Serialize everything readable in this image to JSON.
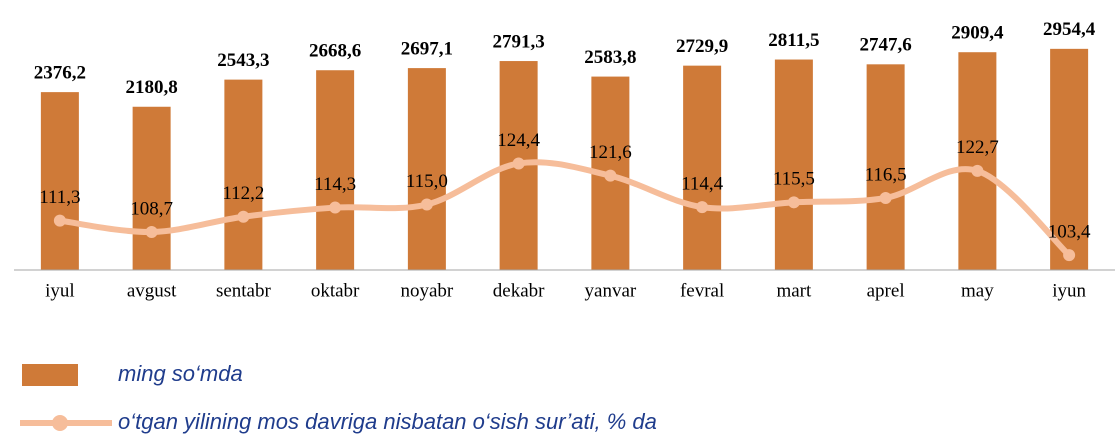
{
  "chart_data": {
    "type": "bar",
    "categories": [
      "iyul",
      "avgust",
      "sentabr",
      "oktabr",
      "noyabr",
      "dekabr",
      "yanvar",
      "fevral",
      "mart",
      "aprel",
      "may",
      "iyun"
    ],
    "series": [
      {
        "name": "ming so‘mda",
        "color": "#cf7a38",
        "values": [
          2376.2,
          2180.8,
          2543.3,
          2668.6,
          2697.1,
          2791.3,
          2583.8,
          2729.9,
          2811.5,
          2747.6,
          2909.4,
          2954.4
        ],
        "value_labels": [
          "2376,2",
          "2180,8",
          "2543,3",
          "2668,6",
          "2697,1",
          "2791,3",
          "2583,8",
          "2729,9",
          "2811,5",
          "2747,6",
          "2909,4",
          "2954,4"
        ]
      },
      {
        "name": "o‘tgan yilining mos davriga nisbatan o‘sish sur’ati, % da",
        "type": "line",
        "axis": "y2",
        "color": "#f6bd9a",
        "values": [
          111.3,
          108.7,
          112.2,
          114.3,
          115.0,
          124.4,
          121.6,
          114.4,
          115.5,
          116.5,
          122.7,
          103.4
        ],
        "value_labels": [
          "111,3",
          "108,7",
          "112,2",
          "114,3",
          "115,0",
          "124,4",
          "121,6",
          "114,4",
          "115,5",
          "116,5",
          "122,7",
          "103,4"
        ]
      }
    ],
    "ylim": [
      0,
      3500
    ],
    "y2lim": [
      100,
      160
    ]
  }
}
